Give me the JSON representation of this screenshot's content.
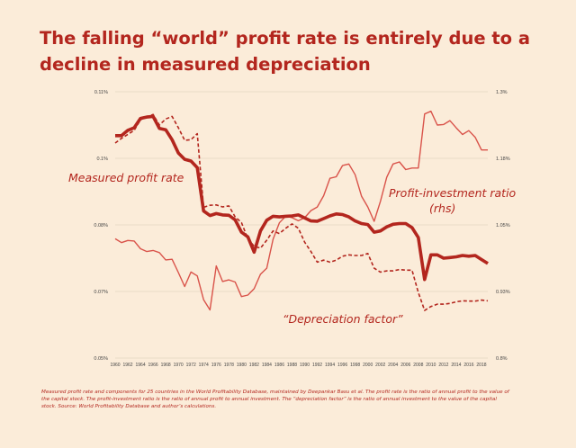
{
  "title": "The falling “world” profit rate is entirely due to a decline in measured depreciation",
  "footnote": "Measured profit rate and components for 25 countries in the World Profitability Database, maintained by Deepankar Basu et al. The profit rate is the ratio of annual profit to the value of the capital stock. The profit-investment ratio is the ratio of annual profit to annual investment. The “depreciation factor” is the ratio of annual investment to the value of the capital stock. Source: World Profitability Database and author’s calculations.",
  "colors": {
    "background": "#fbecd9",
    "accent": "#b3261e",
    "light_line": "#d9534a"
  },
  "chart_data": {
    "type": "line",
    "x_ticks": [
      "1960",
      "1962",
      "1964",
      "1966",
      "1968",
      "1970",
      "1972",
      "1974",
      "1976",
      "1978",
      "1980",
      "1982",
      "1984",
      "1986",
      "1988",
      "1990",
      "1992",
      "1994",
      "1996",
      "1998",
      "2000",
      "2002",
      "2004",
      "2006",
      "2008",
      "2010",
      "2012",
      "2014",
      "2016",
      "2018"
    ],
    "xlim": [
      1960,
      2019
    ],
    "y_left": {
      "ticks": [
        "0.11%",
        "0.1%",
        "0.08%",
        "0.07%",
        "0.05%"
      ],
      "tick_values": [
        0.11,
        0.1,
        0.08,
        0.07,
        0.05
      ],
      "lim": [
        0.05,
        0.11
      ]
    },
    "y_right": {
      "ticks": [
        "1.3%",
        "1.18%",
        "1.05%",
        "0.93%",
        "0.8%"
      ],
      "tick_values": [
        1.3,
        1.18,
        1.05,
        0.93,
        0.8
      ],
      "lim": [
        0.8,
        1.3
      ]
    },
    "annotations": {
      "profit_rate": "Measured profit rate",
      "pi_ratio_line1": "Profit-investment ratio",
      "pi_ratio_line2": "(rhs)",
      "depreciation": "“Depreciation factor”"
    },
    "series": [
      {
        "key": "profit_rate",
        "axis": "left",
        "style": "solid-thick",
        "color": "#b3261e",
        "x": [
          1960,
          1961,
          1962,
          1963,
          1964,
          1965,
          1966,
          1967,
          1968,
          1969,
          1970,
          1971,
          1972,
          1973,
          1974,
          1975,
          1976,
          1977,
          1978,
          1979,
          1980,
          1981,
          1982,
          1983,
          1984,
          1985,
          1986,
          1987,
          1988,
          1989,
          1990,
          1991,
          1992,
          1993,
          1994,
          1995,
          1996,
          1997,
          1998,
          1999,
          2000,
          2001,
          2002,
          2003,
          2004,
          2005,
          2006,
          2007,
          2008,
          2009,
          2010,
          2011,
          2012,
          2013,
          2014,
          2015,
          2016,
          2017,
          2018,
          2019
        ],
        "values": [
          0.1034,
          0.1034,
          0.1042,
          0.1046,
          0.106,
          0.1062,
          0.1063,
          0.1045,
          0.1043,
          0.1028,
          0.1008,
          0.0997,
          0.0992,
          0.0972,
          0.0842,
          0.0828,
          0.0834,
          0.083,
          0.0829,
          0.0815,
          0.0789,
          0.0782,
          0.0759,
          0.0791,
          0.0814,
          0.0826,
          0.0824,
          0.0826,
          0.0827,
          0.083,
          0.0821,
          0.0812,
          0.0811,
          0.0819,
          0.0827,
          0.0833,
          0.0831,
          0.0824,
          0.0812,
          0.0804,
          0.0801,
          0.0789,
          0.0791,
          0.0797,
          0.0802,
          0.0804,
          0.0804,
          0.0796,
          0.0781,
          0.0718,
          0.0755,
          0.0755,
          0.075,
          0.0751,
          0.0752,
          0.0754,
          0.0753,
          0.0754,
          0.0748,
          0.0742
        ]
      },
      {
        "key": "depreciation_factor",
        "axis": "left",
        "style": "dashed",
        "color": "#b3261e",
        "x": [
          1960,
          1961,
          1962,
          1963,
          1964,
          1965,
          1966,
          1967,
          1968,
          1969,
          1970,
          1971,
          1972,
          1973,
          1974,
          1975,
          1976,
          1977,
          1978,
          1979,
          1980,
          1981,
          1982,
          1983,
          1984,
          1985,
          1986,
          1987,
          1988,
          1989,
          1990,
          1991,
          1992,
          1993,
          1994,
          1995,
          1996,
          1997,
          1998,
          1999,
          2000,
          2001,
          2002,
          2003,
          2004,
          2005,
          2006,
          2007,
          2008,
          2009,
          2010,
          2011,
          2012,
          2013,
          2014,
          2015,
          2016,
          2017,
          2018,
          2019
        ],
        "values": [
          0.1023,
          0.103,
          0.1036,
          0.1042,
          0.1058,
          0.1062,
          0.1066,
          0.105,
          0.1059,
          0.1063,
          0.1046,
          0.1027,
          0.1028,
          0.1037,
          0.0853,
          0.0859,
          0.086,
          0.0854,
          0.0857,
          0.0824,
          0.0807,
          0.0779,
          0.0768,
          0.0765,
          0.0777,
          0.0791,
          0.0787,
          0.0795,
          0.0803,
          0.0795,
          0.0774,
          0.076,
          0.0744,
          0.0747,
          0.0744,
          0.0747,
          0.0753,
          0.0755,
          0.0754,
          0.0754,
          0.0757,
          0.0735,
          0.0729,
          0.0731,
          0.0731,
          0.0733,
          0.0732,
          0.0732,
          0.0697,
          0.0643,
          0.0655,
          0.0662,
          0.0662,
          0.0664,
          0.0669,
          0.0672,
          0.0671,
          0.0671,
          0.0674,
          0.0672
        ]
      },
      {
        "key": "profit_investment_ratio",
        "axis": "right",
        "style": "solid-thin",
        "color": "#d9534a",
        "x": [
          1960,
          1961,
          1962,
          1963,
          1964,
          1965,
          1966,
          1967,
          1968,
          1969,
          1970,
          1971,
          1972,
          1973,
          1974,
          1975,
          1976,
          1977,
          1978,
          1979,
          1980,
          1981,
          1982,
          1983,
          1984,
          1985,
          1986,
          1987,
          1988,
          1989,
          1990,
          1991,
          1992,
          1993,
          1994,
          1995,
          1996,
          1997,
          1998,
          1999,
          2000,
          2001,
          2002,
          2003,
          2004,
          2005,
          2006,
          2007,
          2008,
          2009,
          2010,
          2011,
          2012,
          2013,
          2014,
          2015,
          2016,
          2017,
          2018,
          2019
        ],
        "values": [
          1.025,
          1.018,
          1.022,
          1.021,
          1.007,
          1.002,
          1.004,
          1.0,
          0.987,
          0.988,
          0.964,
          0.939,
          0.965,
          0.958,
          0.914,
          0.894,
          0.976,
          0.948,
          0.951,
          0.947,
          0.92,
          0.923,
          0.935,
          0.961,
          0.972,
          1.024,
          1.054,
          1.067,
          1.064,
          1.058,
          1.064,
          1.078,
          1.085,
          1.107,
          1.141,
          1.144,
          1.166,
          1.169,
          1.148,
          1.106,
          1.085,
          1.057,
          1.096,
          1.143,
          1.169,
          1.173,
          1.158,
          1.161,
          1.161,
          1.26,
          1.265,
          1.24,
          1.241,
          1.248,
          1.235,
          1.223,
          1.23,
          1.218,
          1.195,
          1.195
        ]
      }
    ]
  }
}
